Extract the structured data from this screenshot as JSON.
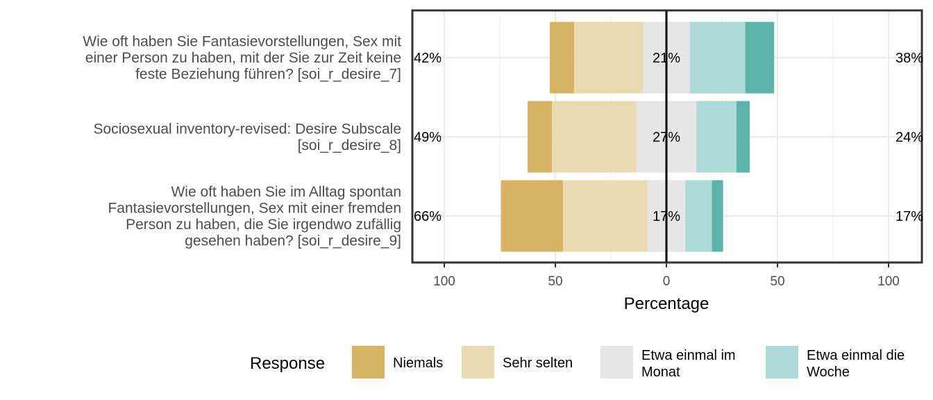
{
  "chart_data": {
    "type": "bar",
    "orientation": "horizontal-diverging",
    "xlabel": "Percentage",
    "xlim": [
      -115,
      115
    ],
    "x_ticks": [
      -100,
      -50,
      0,
      50,
      100
    ],
    "x_tick_labels": [
      "100",
      "50",
      "0",
      "50",
      "100"
    ],
    "grid": true,
    "legend_title": "Response",
    "legend_position": "bottom",
    "categories": [
      "Wie oft haben Sie Fantasievorstellungen, Sex mit einer Person zu haben, mit der Sie zur Zeit keine feste Beziehung führen? [soi_r_desire_7]",
      "Sociosexual inventory-revised: Desire Subscale [soi_r_desire_8]",
      "Wie oft haben Sie im Alltag spontan Fantasievorstellungen, Sex mit einer fremden Person zu haben, die Sie irgendwo zufällig gesehen haben? [soi_r_desire_9]"
    ],
    "category_lines": [
      [
        "Wie oft haben Sie Fantasievorstellungen, Sex mit",
        "einer Person zu haben, mit der Sie zur Zeit keine",
        "feste Beziehung führen? [soi_r_desire_7]"
      ],
      [
        "Sociosexual inventory-revised: Desire Subscale",
        "[soi_r_desire_8]"
      ],
      [
        "Wie oft haben Sie im Alltag spontan",
        "Fantasievorstellungen, Sex mit einer fremden",
        "Person zu haben, die Sie irgendwo zufällig",
        "gesehen haben? [soi_r_desire_9]"
      ]
    ],
    "series": [
      {
        "name": "Niemals",
        "color": "#D8B365",
        "side": "left",
        "values": [
          11,
          11,
          28
        ]
      },
      {
        "name": "Sehr selten",
        "color": "#EBD9B2",
        "side": "left",
        "values": [
          31,
          38,
          38
        ]
      },
      {
        "name": "Etwa einmal im Monat",
        "color": "#E6E6E6",
        "side": "center",
        "values": [
          21,
          27,
          17
        ]
      },
      {
        "name": "Etwa einmal die Woche",
        "color": "#ADD9D6",
        "side": "right",
        "values": [
          25,
          18,
          12
        ]
      },
      {
        "name": "",
        "color": "#5AB4AC",
        "side": "right",
        "values": [
          13,
          6,
          5
        ]
      }
    ],
    "left_totals": [
      "42%",
      "49%",
      "66%"
    ],
    "center_labels": [
      "21%",
      "27%",
      "17%"
    ],
    "right_totals": [
      "38%",
      "24%",
      "17%"
    ],
    "legend_items": [
      {
        "label": "Niemals",
        "lines": [
          "Niemals"
        ],
        "color": "#D8B365"
      },
      {
        "label": "Sehr selten",
        "lines": [
          "Sehr selten"
        ],
        "color": "#EBD9B2"
      },
      {
        "label": "Etwa einmal im Monat",
        "lines": [
          "Etwa einmal im",
          "Monat"
        ],
        "color": "#E6E6E6"
      },
      {
        "label": "Etwa einmal die Woche",
        "lines": [
          "Etwa einmal die",
          "Woche"
        ],
        "color": "#ADD9D6"
      }
    ]
  }
}
